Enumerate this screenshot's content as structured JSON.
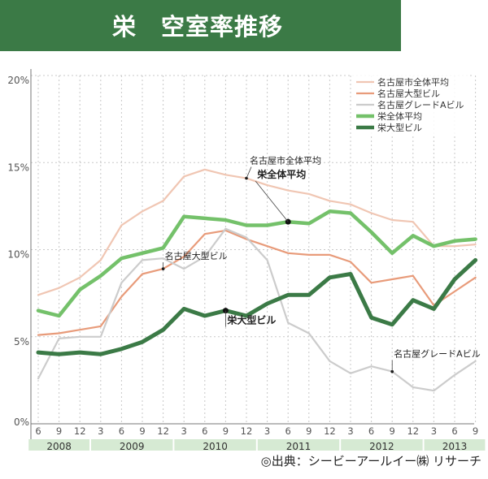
{
  "title": "栄　空室率推移",
  "source": "◎出典：シービーアールイー㈱ リサーチ",
  "chart_data": {
    "type": "line",
    "ylim": [
      0,
      20
    ],
    "yticks": [
      "0%",
      "5%",
      "10%",
      "15%",
      "20%"
    ],
    "grid": true,
    "legend_position": "top-right",
    "months": [
      "6",
      "9",
      "12",
      "3",
      "6",
      "9",
      "12",
      "3",
      "6",
      "9",
      "12",
      "3",
      "6",
      "9",
      "12",
      "3",
      "6",
      "9",
      "12",
      "3",
      "6",
      "9"
    ],
    "years": [
      {
        "label": "2008",
        "start": 0,
        "end": 2
      },
      {
        "label": "2009",
        "start": 3,
        "end": 6
      },
      {
        "label": "2010",
        "start": 7,
        "end": 10
      },
      {
        "label": "2011",
        "start": 11,
        "end": 14
      },
      {
        "label": "2012",
        "start": 15,
        "end": 18
      },
      {
        "label": "2013",
        "start": 19,
        "end": 21
      }
    ],
    "series": [
      {
        "name": "名古屋市全体平均",
        "color": "#f0c6b3",
        "width": 2.2,
        "values": [
          7.4,
          7.8,
          8.4,
          9.4,
          11.4,
          12.2,
          12.8,
          14.2,
          14.6,
          14.3,
          14.1,
          13.7,
          13.4,
          13.2,
          12.8,
          12.6,
          12.1,
          11.7,
          11.6,
          10.2,
          10.2,
          10.3
        ]
      },
      {
        "name": "名古屋大型ビル",
        "color": "#e89b7a",
        "width": 2.2,
        "values": [
          5.1,
          5.2,
          5.4,
          5.6,
          7.3,
          8.6,
          8.9,
          9.6,
          10.9,
          11.1,
          10.6,
          10.2,
          9.8,
          9.7,
          9.7,
          9.3,
          8.1,
          8.3,
          8.5,
          6.8,
          7.6,
          8.4
        ]
      },
      {
        "name": "名古屋グレードAビル",
        "color": "#cccccc",
        "width": 2.2,
        "values": [
          2.6,
          4.9,
          5.0,
          5.0,
          8.1,
          9.4,
          9.5,
          8.9,
          9.6,
          11.2,
          10.7,
          9.4,
          5.8,
          5.2,
          3.6,
          2.9,
          3.3,
          3.0,
          2.1,
          1.9,
          2.8,
          3.6
        ]
      },
      {
        "name": "栄全体平均",
        "color": "#74c16a",
        "width": 4.5,
        "values": [
          6.5,
          6.2,
          7.7,
          8.5,
          9.5,
          9.8,
          10.1,
          11.9,
          11.8,
          11.7,
          11.4,
          11.4,
          11.6,
          11.5,
          12.2,
          12.1,
          11.0,
          9.8,
          10.8,
          10.2,
          10.5,
          10.6
        ]
      },
      {
        "name": "栄大型ビル",
        "color": "#3b7a46",
        "width": 5,
        "values": [
          4.1,
          4.0,
          4.1,
          4.0,
          4.3,
          4.7,
          5.4,
          6.6,
          6.2,
          6.5,
          6.2,
          6.9,
          7.4,
          7.4,
          8.4,
          8.6,
          6.1,
          5.7,
          7.1,
          6.6,
          8.3,
          9.4
        ]
      }
    ],
    "annotations": [
      {
        "text": "名古屋市全体平均",
        "series": 0,
        "index": 10,
        "bold": false
      },
      {
        "text": "栄全体平均",
        "series": 3,
        "index": 12,
        "bold": true
      },
      {
        "text": "名古屋大型ビル",
        "series": 1,
        "index": 6,
        "bold": false
      },
      {
        "text": "栄大型ビル",
        "series": 4,
        "index": 9,
        "bold": true
      },
      {
        "text": "名古屋グレードAビル",
        "series": 2,
        "index": 17,
        "bold": false
      }
    ]
  }
}
